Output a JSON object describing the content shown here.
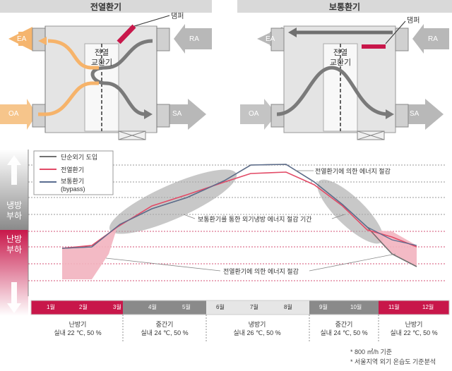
{
  "panels": [
    {
      "title": "전열환기",
      "core_label": "전열\n교환기",
      "damper_label": "댐퍼",
      "ports": {
        "ea": "EA",
        "ra": "RA",
        "oa": "OA",
        "sa": "SA"
      }
    },
    {
      "title": "보통환기",
      "core_label": "전열\n교환기",
      "damper_label": "댐퍼",
      "ports": {
        "ea": "EA",
        "ra": "RA",
        "oa": "OA",
        "sa": "SA"
      }
    }
  ],
  "side": {
    "cooling_load": "냉방\n부하",
    "heating_load": "난방\n부하"
  },
  "legend": [
    {
      "label": "단순외기 도입",
      "color": "#707070"
    },
    {
      "label": "전열환기",
      "color": "#e24a66"
    },
    {
      "label": "보통환기\n(bypass)",
      "color": "#5a6d90"
    }
  ],
  "annotations": {
    "saving_heat": "전열환기에 의한 에너지 절감",
    "saving_normal": "보통환기를 통한 외기냉방 에너지 절감 기간",
    "saving_heat_bottom": "전열환기에 의한 에너지 절감"
  },
  "months": [
    "1월",
    "2월",
    "3월",
    "4월",
    "5월",
    "6월",
    "7월",
    "8월",
    "9월",
    "10월",
    "11월",
    "12월"
  ],
  "seasons": [
    {
      "name": "난방기",
      "cond": "실내 22 ℃, 50 %"
    },
    {
      "name": "중간기",
      "cond": "실내 24 ℃, 50 %"
    },
    {
      "name": "냉방기",
      "cond": "실내 26 ℃, 50 %"
    },
    {
      "name": "중간기",
      "cond": "실내 24 ℃, 50 %"
    },
    {
      "name": "난방기",
      "cond": "실내 22 ℃, 50 %"
    }
  ],
  "notes": [
    "* 800 ㎥/h 기준",
    "* 서울지역 외기 온습도 기준분석"
  ],
  "colors": {
    "heating": "#c8174a",
    "cooling": "#8a8a8a",
    "shade": "#f2b3bf",
    "highlight": "#b0b0b0"
  }
}
